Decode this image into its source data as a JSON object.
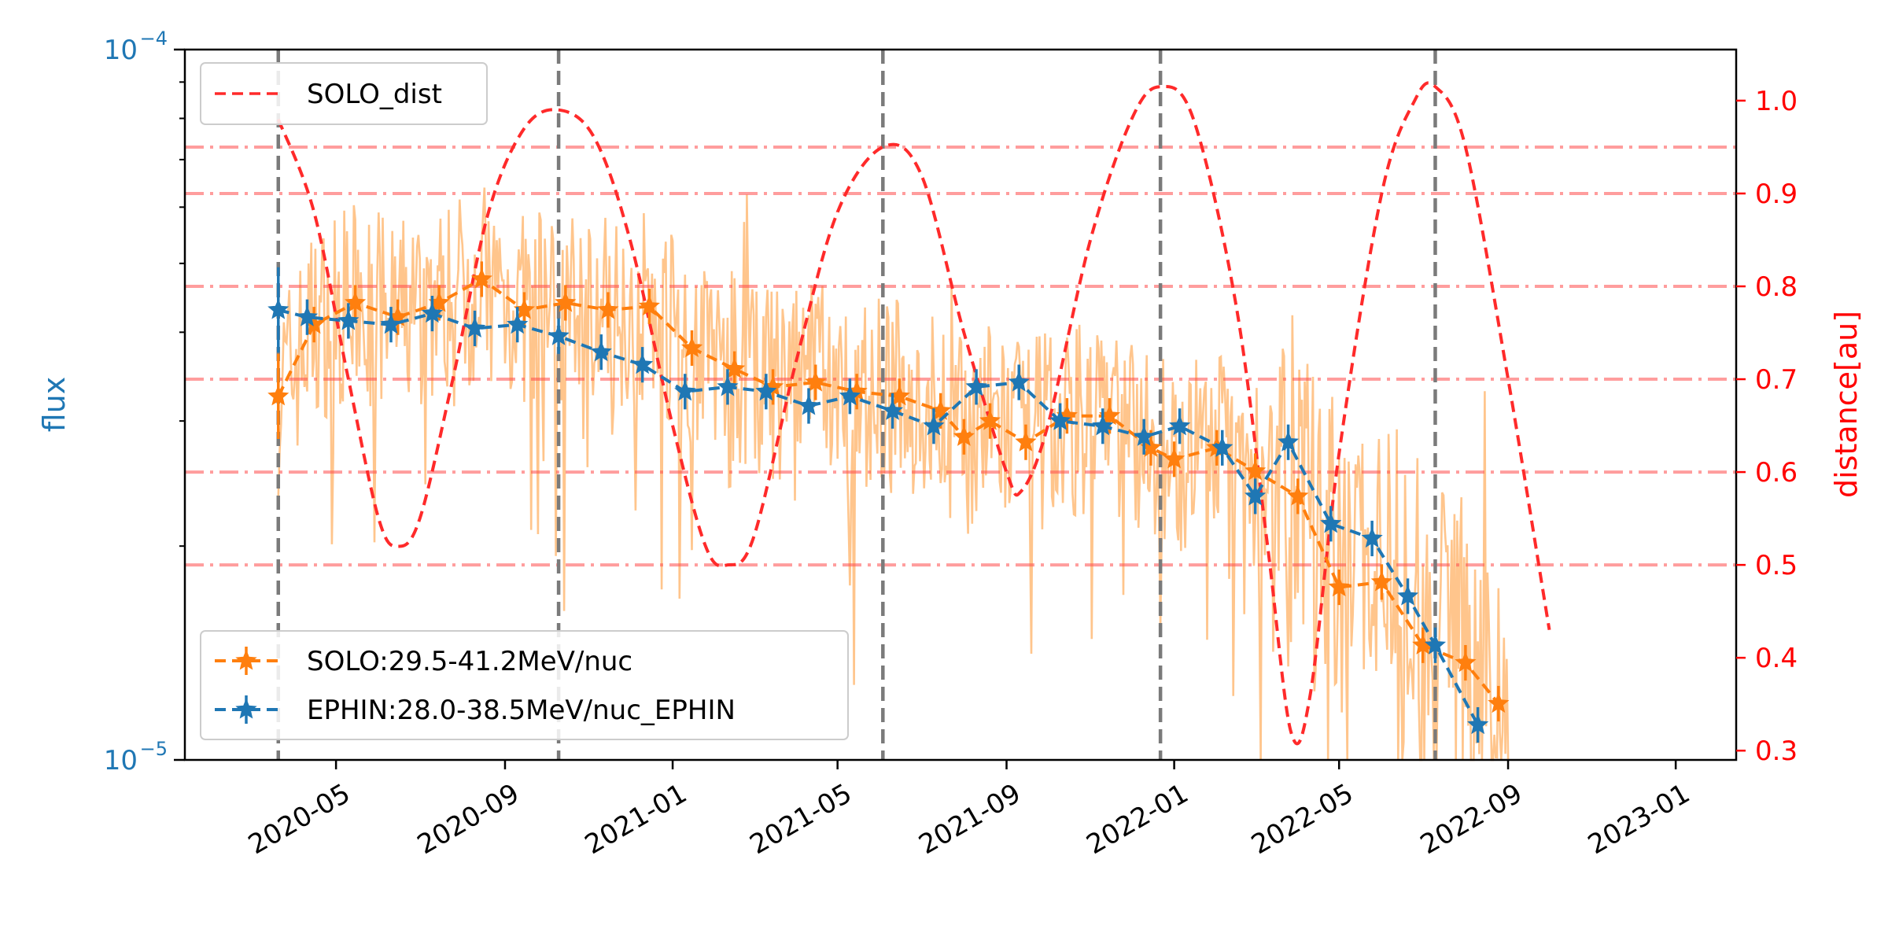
{
  "chart_data": {
    "type": "line",
    "x_axis": {
      "kind": "date",
      "tick_labels": [
        "2020-05",
        "2020-09",
        "2021-01",
        "2021-05",
        "2021-09",
        "2022-01",
        "2022-05",
        "2022-09",
        "2023-01"
      ],
      "tick_dates": [
        "2020-05-01",
        "2020-09-01",
        "2021-01-01",
        "2021-05-01",
        "2021-09-01",
        "2022-01-01",
        "2022-05-01",
        "2022-09-01",
        "2023-01-01"
      ],
      "range": [
        "2020-01-12",
        "2023-02-14"
      ]
    },
    "y_left": {
      "label": "flux",
      "scale": "log",
      "range": [
        1e-05,
        0.0001
      ],
      "tick_values": [
        1e-05,
        0.0001
      ],
      "tick_labels": [
        {
          "base": "10",
          "exp": "−5"
        },
        {
          "base": "10",
          "exp": "−4"
        }
      ],
      "color": "#1f77b4"
    },
    "y_right": {
      "label": "distance[au]",
      "scale": "linear",
      "range": [
        0.29,
        1.055
      ],
      "tick_values": [
        0.3,
        0.4,
        0.5,
        0.6,
        0.7,
        0.8,
        0.9,
        1.0
      ],
      "tick_labels": [
        "0.3",
        "0.4",
        "0.5",
        "0.6",
        "0.7",
        "0.8",
        "0.9",
        "1.0"
      ],
      "color": "#ff0000"
    },
    "perihelion_aphelion_lines": [
      "2020-03-20",
      "2020-10-10",
      "2021-06-03",
      "2021-12-22",
      "2022-07-10"
    ],
    "distance_reference_lines": [
      0.5,
      0.6,
      0.7,
      0.8,
      0.9,
      0.95
    ],
    "series": [
      {
        "name": "SOLO_dist",
        "axis": "right",
        "style": "dashed",
        "color": "#ff2a2a",
        "points": [
          [
            "2020-03-20",
            0.98
          ],
          [
            "2020-04-15",
            0.88
          ],
          [
            "2020-05-10",
            0.7
          ],
          [
            "2020-06-01",
            0.55
          ],
          [
            "2020-06-15",
            0.52
          ],
          [
            "2020-07-01",
            0.55
          ],
          [
            "2020-07-25",
            0.7
          ],
          [
            "2020-08-20",
            0.88
          ],
          [
            "2020-09-15",
            0.97
          ],
          [
            "2020-10-10",
            0.99
          ],
          [
            "2020-11-05",
            0.96
          ],
          [
            "2020-12-01",
            0.85
          ],
          [
            "2021-01-01",
            0.65
          ],
          [
            "2021-01-25",
            0.52
          ],
          [
            "2021-02-10",
            0.5
          ],
          [
            "2021-03-01",
            0.53
          ],
          [
            "2021-04-01",
            0.72
          ],
          [
            "2021-05-01",
            0.88
          ],
          [
            "2021-06-03",
            0.95
          ],
          [
            "2021-07-01",
            0.92
          ],
          [
            "2021-08-01",
            0.75
          ],
          [
            "2021-09-01",
            0.6
          ],
          [
            "2021-09-12",
            0.58
          ],
          [
            "2021-10-01",
            0.65
          ],
          [
            "2021-11-01",
            0.85
          ],
          [
            "2021-12-01",
            0.98
          ],
          [
            "2021-12-22",
            1.015
          ],
          [
            "2022-01-15",
            0.98
          ],
          [
            "2022-02-15",
            0.78
          ],
          [
            "2022-03-10",
            0.52
          ],
          [
            "2022-03-27",
            0.32
          ],
          [
            "2022-04-10",
            0.36
          ],
          [
            "2022-05-01",
            0.62
          ],
          [
            "2022-06-01",
            0.9
          ],
          [
            "2022-06-25",
            1.0
          ],
          [
            "2022-07-10",
            1.015
          ],
          [
            "2022-08-01",
            0.95
          ],
          [
            "2022-09-01",
            0.7
          ],
          [
            "2022-10-01",
            0.43
          ]
        ]
      },
      {
        "name": "SOLO:29.5-41.2MeV/nuc",
        "axis": "left",
        "style": "dashed-star-errorbar",
        "color": "#ff7f0e",
        "points": [
          [
            "2020-03-20",
            3.25e-05
          ],
          [
            "2020-04-15",
            4.1e-05
          ],
          [
            "2020-05-15",
            4.4e-05
          ],
          [
            "2020-06-15",
            4.2e-05
          ],
          [
            "2020-07-15",
            4.4e-05
          ],
          [
            "2020-08-15",
            4.75e-05
          ],
          [
            "2020-09-15",
            4.3e-05
          ],
          [
            "2020-10-15",
            4.4e-05
          ],
          [
            "2020-11-15",
            4.3e-05
          ],
          [
            "2020-12-15",
            4.35e-05
          ],
          [
            "2021-01-15",
            3.8e-05
          ],
          [
            "2021-02-15",
            3.55e-05
          ],
          [
            "2021-03-15",
            3.35e-05
          ],
          [
            "2021-04-15",
            3.4e-05
          ],
          [
            "2021-05-15",
            3.3e-05
          ],
          [
            "2021-06-15",
            3.25e-05
          ],
          [
            "2021-07-15",
            3.1e-05
          ],
          [
            "2021-08-01",
            2.85e-05
          ],
          [
            "2021-08-20",
            3e-05
          ],
          [
            "2021-09-15",
            2.8e-05
          ],
          [
            "2021-10-15",
            3.05e-05
          ],
          [
            "2021-11-15",
            3.05e-05
          ],
          [
            "2021-12-15",
            2.75e-05
          ],
          [
            "2022-01-01",
            2.65e-05
          ],
          [
            "2022-02-01",
            2.75e-05
          ],
          [
            "2022-03-01",
            2.55e-05
          ],
          [
            "2022-04-01",
            2.35e-05
          ],
          [
            "2022-05-01",
            1.75e-05
          ],
          [
            "2022-06-01",
            1.78e-05
          ],
          [
            "2022-07-01",
            1.45e-05
          ],
          [
            "2022-08-01",
            1.37e-05
          ],
          [
            "2022-08-25",
            1.2e-05
          ]
        ]
      },
      {
        "name": "EPHIN:28.0-38.5MeV/nuc_EPHIN",
        "axis": "left",
        "style": "dashed-star-errorbar",
        "color": "#1f77b4",
        "points": [
          [
            "2020-03-20",
            4.3e-05
          ],
          [
            "2020-04-10",
            4.2e-05
          ],
          [
            "2020-05-10",
            4.15e-05
          ],
          [
            "2020-06-10",
            4.1e-05
          ],
          [
            "2020-07-10",
            4.25e-05
          ],
          [
            "2020-08-10",
            4.05e-05
          ],
          [
            "2020-09-10",
            4.1e-05
          ],
          [
            "2020-10-10",
            3.95e-05
          ],
          [
            "2020-11-10",
            3.75e-05
          ],
          [
            "2020-12-10",
            3.6e-05
          ],
          [
            "2021-01-10",
            3.3e-05
          ],
          [
            "2021-02-10",
            3.35e-05
          ],
          [
            "2021-03-10",
            3.3e-05
          ],
          [
            "2021-04-10",
            3.15e-05
          ],
          [
            "2021-05-10",
            3.25e-05
          ],
          [
            "2021-06-10",
            3.1e-05
          ],
          [
            "2021-07-10",
            2.95e-05
          ],
          [
            "2021-08-10",
            3.35e-05
          ],
          [
            "2021-09-10",
            3.4e-05
          ],
          [
            "2021-10-10",
            3e-05
          ],
          [
            "2021-11-10",
            2.95e-05
          ],
          [
            "2021-12-10",
            2.85e-05
          ],
          [
            "2022-01-05",
            2.95e-05
          ],
          [
            "2022-02-05",
            2.75e-05
          ],
          [
            "2022-03-01",
            2.35e-05
          ],
          [
            "2022-03-25",
            2.8e-05
          ],
          [
            "2022-04-25",
            2.15e-05
          ],
          [
            "2022-05-25",
            2.05e-05
          ],
          [
            "2022-06-20",
            1.7e-05
          ],
          [
            "2022-07-10",
            1.45e-05
          ],
          [
            "2022-08-10",
            1.12e-05
          ]
        ]
      },
      {
        "name": "",
        "axis": "left",
        "style": "raw-noisy",
        "color": "#ffbb78",
        "range": [
          "2020-03-20",
          "2022-09-01"
        ]
      }
    ],
    "legends": [
      {
        "placement": "upper-left",
        "entries": [
          "SOLO_dist"
        ]
      },
      {
        "placement": "lower-left",
        "entries": [
          "SOLO:29.5-41.2MeV/nuc",
          "EPHIN:28.0-38.5MeV/nuc_EPHIN"
        ]
      }
    ]
  }
}
